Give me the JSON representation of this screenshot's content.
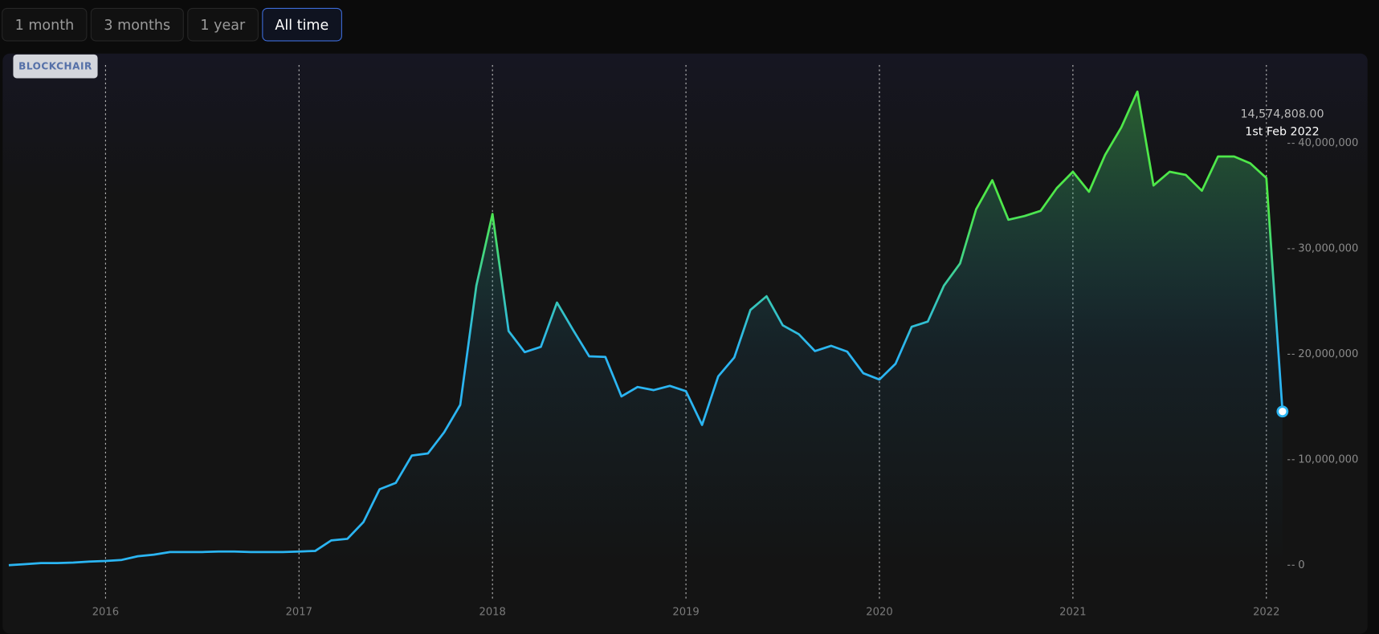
{
  "range_buttons": [
    "1 month",
    "3 months",
    "1 year",
    "All time"
  ],
  "active_button": "All time",
  "watermark": "BLOCKCHAIR",
  "chart_data": {
    "type": "line",
    "categories": [
      null,
      null,
      null,
      null,
      null,
      null,
      "2016",
      null,
      null,
      null,
      null,
      null,
      null,
      null,
      null,
      null,
      null,
      null,
      "2017",
      null,
      null,
      null,
      null,
      null,
      null,
      null,
      null,
      null,
      null,
      null,
      "2018",
      null,
      null,
      null,
      null,
      null,
      null,
      null,
      null,
      null,
      null,
      null,
      "2019",
      null,
      null,
      null,
      null,
      null,
      null,
      null,
      null,
      null,
      null,
      null,
      "2020",
      null,
      null,
      null,
      null,
      null,
      null,
      null,
      null,
      null,
      null,
      null,
      "2021",
      null,
      null,
      null,
      null,
      null,
      null,
      null,
      null,
      null,
      null,
      null,
      "2022",
      null
    ],
    "values": [
      0,
      100000,
      200000,
      200000,
      250000,
      350000,
      400000,
      500000,
      850000,
      1000000,
      1250000,
      1250000,
      1250000,
      1300000,
      1300000,
      1250000,
      1250000,
      1250000,
      1300000,
      1350000,
      2350000,
      2500000,
      4100000,
      7200000,
      7800000,
      10400000,
      10600000,
      12600000,
      15200000,
      26500000,
      33300000,
      22200000,
      20200000,
      20700000,
      24900000,
      22300000,
      19800000,
      19750000,
      16000000,
      16900000,
      16600000,
      17000000,
      16500000,
      13300000,
      17900000,
      19700000,
      24200000,
      25500000,
      22750000,
      21900000,
      20300000,
      20800000,
      20250000,
      18200000,
      17600000,
      19100000,
      22600000,
      23100000,
      26500000,
      28600000,
      33750000,
      36500000,
      32750000,
      33100000,
      33600000,
      35750000,
      37300000,
      35400000,
      38900000,
      41500000,
      44900000,
      36000000,
      37300000,
      37000000,
      35500000,
      38750000,
      38750000,
      38100000,
      36700000,
      14574808
    ],
    "ylim": [
      -1400000,
      47750000
    ],
    "yticks": [
      0,
      {
        "value": 10000000,
        "label": "10,000,000"
      },
      {
        "value": 20000000,
        "label": "20,000,000"
      },
      {
        "value": 30000000,
        "label": "30,000,000"
      },
      {
        "value": 40000000,
        "label": "40,000,000"
      }
    ],
    "color_low": "#2bb5f2",
    "color_high": "#4ee84a",
    "tooltip": {
      "label": "14,574,808.00",
      "date": "1st Feb 2022"
    }
  }
}
